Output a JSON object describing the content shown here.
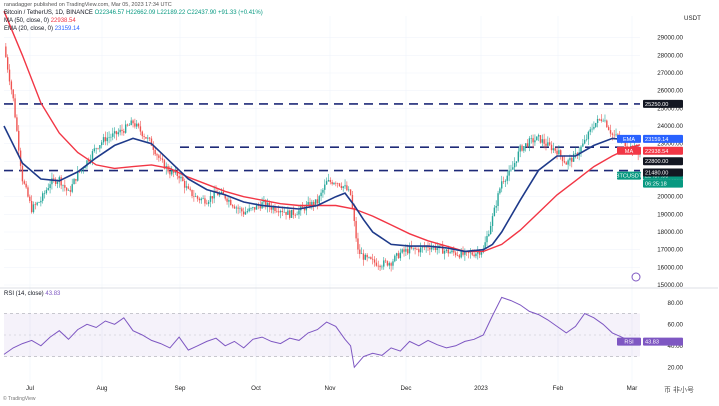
{
  "header": {
    "author": "ranadagger",
    "published": "published on TradingView.com, Mar 05, 2023 17:34 UTC"
  },
  "symbol_line": {
    "symbol": "Bitcoin / TetherUS, 1D, BINANCE",
    "ohlc": "O22346.57 H22662.09 L22189.22 C22437.90 +91.33 (+0.41%)"
  },
  "ma_legend": {
    "label": "MA (50, close, 0)",
    "value": "22938.54"
  },
  "ema_legend": {
    "label": "EMA (20, close, 0)",
    "value": "23159.14"
  },
  "rsi_legend": {
    "label": "RSI (14, close)",
    "value": "43.83"
  },
  "currency": "USDT",
  "price_tags": {
    "ema": {
      "name": "EMA",
      "value": "23159.14",
      "color": "#2962ff"
    },
    "ma": {
      "name": "MA",
      "value": "22938.54",
      "color": "#f23645"
    },
    "level1": {
      "value": "22800.00",
      "color": "#131722"
    },
    "last": {
      "name": "BTCUSDT",
      "value": "22437.90",
      "countdown": "06:25:18",
      "color": "#089981"
    },
    "level2": {
      "value": "21480.00",
      "color": "#131722"
    },
    "level3": {
      "value": "25250.00",
      "color": "#131722"
    }
  },
  "rsi_tag": {
    "name": "RSI",
    "value": "43.83",
    "color": "#7e57c2"
  },
  "bottom_left": "© TradingView",
  "watermark": "币 非小号",
  "chart_data": {
    "type": "candlestick",
    "title": "Bitcoin / TetherUS, 1D, BINANCE",
    "ylabel": "USDT",
    "price_ylim": [
      15000,
      30000
    ],
    "price_ticks": [
      29000,
      28000,
      27000,
      26000,
      25000,
      24000,
      23000,
      22000,
      21000,
      20000,
      19000,
      18000,
      17000,
      16000,
      15000
    ],
    "rsi_ylim": [
      10,
      90
    ],
    "rsi_ticks": [
      80,
      60,
      40,
      20
    ],
    "x_ticks": [
      "Jul",
      "Aug",
      "Sep",
      "Oct",
      "Nov",
      "Dec",
      "2023",
      "Feb",
      "Mar"
    ],
    "horizontal_levels": [
      25250,
      22800,
      21480
    ],
    "price_path": [
      [
        0,
        28500
      ],
      [
        5,
        25500
      ],
      [
        10,
        21000
      ],
      [
        15,
        19300
      ],
      [
        20,
        19800
      ],
      [
        25,
        20800
      ],
      [
        30,
        21000
      ],
      [
        35,
        20200
      ],
      [
        40,
        21300
      ],
      [
        45,
        22000
      ],
      [
        50,
        22800
      ],
      [
        55,
        23300
      ],
      [
        60,
        23500
      ],
      [
        65,
        23800
      ],
      [
        70,
        24200
      ],
      [
        75,
        23600
      ],
      [
        80,
        23000
      ],
      [
        85,
        22000
      ],
      [
        90,
        21400
      ],
      [
        95,
        21200
      ],
      [
        100,
        20300
      ],
      [
        105,
        19900
      ],
      [
        110,
        19800
      ],
      [
        115,
        20200
      ],
      [
        120,
        20000
      ],
      [
        125,
        19500
      ],
      [
        130,
        19100
      ],
      [
        135,
        19300
      ],
      [
        140,
        19600
      ],
      [
        145,
        19400
      ],
      [
        150,
        19300
      ],
      [
        155,
        19000
      ],
      [
        160,
        19200
      ],
      [
        165,
        19500
      ],
      [
        170,
        19700
      ],
      [
        175,
        20800
      ],
      [
        180,
        20900
      ],
      [
        185,
        20500
      ],
      [
        188,
        20100
      ],
      [
        192,
        16900
      ],
      [
        196,
        16500
      ],
      [
        200,
        16300
      ],
      [
        205,
        16200
      ],
      [
        210,
        16300
      ],
      [
        215,
        16800
      ],
      [
        220,
        17000
      ],
      [
        225,
        17000
      ],
      [
        230,
        17200
      ],
      [
        235,
        17100
      ],
      [
        240,
        16900
      ],
      [
        245,
        16800
      ],
      [
        250,
        16700
      ],
      [
        255,
        16800
      ],
      [
        260,
        17000
      ],
      [
        265,
        18800
      ],
      [
        270,
        20900
      ],
      [
        275,
        21400
      ],
      [
        280,
        22700
      ],
      [
        285,
        23100
      ],
      [
        290,
        23300
      ],
      [
        295,
        22900
      ],
      [
        300,
        22600
      ],
      [
        305,
        21900
      ],
      [
        310,
        22300
      ],
      [
        315,
        23100
      ],
      [
        320,
        24100
      ],
      [
        325,
        24500
      ],
      [
        330,
        23500
      ],
      [
        335,
        23200
      ],
      [
        340,
        22800
      ],
      [
        345,
        22450
      ]
    ],
    "ema_path": [
      [
        0,
        24000
      ],
      [
        10,
        21900
      ],
      [
        20,
        21000
      ],
      [
        30,
        20900
      ],
      [
        40,
        21400
      ],
      [
        50,
        22200
      ],
      [
        60,
        22900
      ],
      [
        70,
        23300
      ],
      [
        80,
        23000
      ],
      [
        90,
        22000
      ],
      [
        100,
        21000
      ],
      [
        110,
        20400
      ],
      [
        120,
        20100
      ],
      [
        130,
        19700
      ],
      [
        140,
        19500
      ],
      [
        150,
        19400
      ],
      [
        160,
        19300
      ],
      [
        170,
        19500
      ],
      [
        180,
        20000
      ],
      [
        185,
        20200
      ],
      [
        190,
        19500
      ],
      [
        195,
        18700
      ],
      [
        200,
        18000
      ],
      [
        210,
        17300
      ],
      [
        220,
        17200
      ],
      [
        230,
        17200
      ],
      [
        240,
        17100
      ],
      [
        250,
        16900
      ],
      [
        260,
        17000
      ],
      [
        265,
        17300
      ],
      [
        270,
        18000
      ],
      [
        280,
        19800
      ],
      [
        290,
        21500
      ],
      [
        300,
        22300
      ],
      [
        310,
        22300
      ],
      [
        320,
        22900
      ],
      [
        330,
        23300
      ],
      [
        340,
        23200
      ],
      [
        345,
        23159
      ]
    ],
    "ma_path": [
      [
        0,
        30500
      ],
      [
        10,
        28000
      ],
      [
        20,
        25300
      ],
      [
        30,
        23600
      ],
      [
        40,
        22500
      ],
      [
        50,
        21800
      ],
      [
        60,
        21600
      ],
      [
        70,
        21700
      ],
      [
        80,
        21800
      ],
      [
        90,
        21600
      ],
      [
        100,
        21100
      ],
      [
        110,
        20700
      ],
      [
        120,
        20300
      ],
      [
        130,
        20000
      ],
      [
        140,
        19800
      ],
      [
        150,
        19600
      ],
      [
        160,
        19500
      ],
      [
        170,
        19500
      ],
      [
        180,
        19500
      ],
      [
        190,
        19300
      ],
      [
        200,
        18900
      ],
      [
        210,
        18400
      ],
      [
        220,
        17900
      ],
      [
        230,
        17500
      ],
      [
        240,
        17200
      ],
      [
        250,
        16900
      ],
      [
        260,
        16900
      ],
      [
        270,
        17300
      ],
      [
        280,
        18100
      ],
      [
        290,
        19100
      ],
      [
        300,
        20100
      ],
      [
        310,
        20900
      ],
      [
        320,
        21700
      ],
      [
        330,
        22300
      ],
      [
        340,
        22800
      ],
      [
        345,
        22938
      ]
    ],
    "rsi_path": [
      [
        0,
        32
      ],
      [
        5,
        38
      ],
      [
        10,
        42
      ],
      [
        15,
        45
      ],
      [
        20,
        40
      ],
      [
        25,
        48
      ],
      [
        30,
        54
      ],
      [
        35,
        46
      ],
      [
        40,
        55
      ],
      [
        45,
        60
      ],
      [
        50,
        57
      ],
      [
        55,
        63
      ],
      [
        60,
        60
      ],
      [
        65,
        66
      ],
      [
        70,
        54
      ],
      [
        75,
        50
      ],
      [
        80,
        45
      ],
      [
        85,
        42
      ],
      [
        90,
        38
      ],
      [
        95,
        48
      ],
      [
        100,
        36
      ],
      [
        105,
        40
      ],
      [
        110,
        44
      ],
      [
        115,
        47
      ],
      [
        120,
        40
      ],
      [
        125,
        44
      ],
      [
        130,
        38
      ],
      [
        135,
        46
      ],
      [
        140,
        48
      ],
      [
        145,
        44
      ],
      [
        150,
        42
      ],
      [
        155,
        47
      ],
      [
        160,
        45
      ],
      [
        165,
        52
      ],
      [
        170,
        55
      ],
      [
        175,
        62
      ],
      [
        180,
        58
      ],
      [
        185,
        46
      ],
      [
        188,
        40
      ],
      [
        190,
        20
      ],
      [
        195,
        30
      ],
      [
        200,
        33
      ],
      [
        205,
        31
      ],
      [
        210,
        38
      ],
      [
        215,
        35
      ],
      [
        220,
        44
      ],
      [
        225,
        40
      ],
      [
        230,
        45
      ],
      [
        235,
        41
      ],
      [
        240,
        38
      ],
      [
        245,
        40
      ],
      [
        250,
        44
      ],
      [
        255,
        46
      ],
      [
        260,
        50
      ],
      [
        265,
        68
      ],
      [
        270,
        85
      ],
      [
        275,
        82
      ],
      [
        280,
        78
      ],
      [
        285,
        72
      ],
      [
        290,
        69
      ],
      [
        295,
        64
      ],
      [
        300,
        58
      ],
      [
        305,
        52
      ],
      [
        310,
        58
      ],
      [
        315,
        70
      ],
      [
        320,
        66
      ],
      [
        325,
        60
      ],
      [
        330,
        52
      ],
      [
        335,
        48
      ],
      [
        340,
        44
      ],
      [
        345,
        43.83
      ]
    ]
  }
}
